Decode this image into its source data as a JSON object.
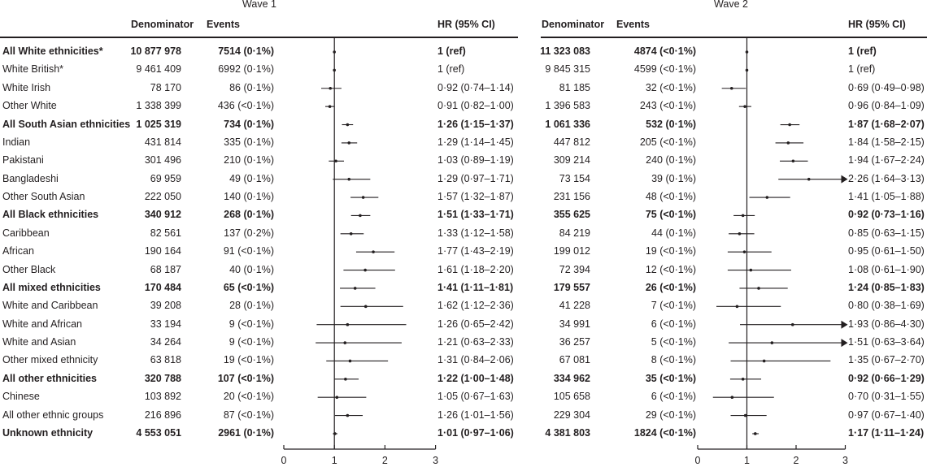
{
  "chart_data": {
    "type": "forest",
    "xlim": [
      0,
      3
    ],
    "x_ticks": [
      "0",
      "1",
      "2",
      "3"
    ],
    "reference_line": 1,
    "waves": [
      {
        "title": "Wave 1",
        "headers": {
          "denominator": "Denominator",
          "events": "Events",
          "hr": "HR (95% CI)"
        }
      },
      {
        "title": "Wave 2",
        "headers": {
          "denominator": "Denominator",
          "events": "Events",
          "hr": "HR (95% CI)"
        }
      }
    ],
    "rows": [
      {
        "label": "All White ethnicities*",
        "bold": true,
        "w1": {
          "den": "10 877 978",
          "ev": "7514 (0·1%)",
          "hr_text": "1 (ref)",
          "hr": 1,
          "lo": 1,
          "hi": 1
        },
        "w2": {
          "den": "11 323 083",
          "ev": "4874 (<0·1%)",
          "hr_text": "1 (ref)",
          "hr": 1,
          "lo": 1,
          "hi": 1
        }
      },
      {
        "label": "White British*",
        "bold": false,
        "w1": {
          "den": "9 461 409",
          "ev": "6992 (0·1%)",
          "hr_text": "1 (ref)",
          "hr": 1,
          "lo": 1,
          "hi": 1
        },
        "w2": {
          "den": "9 845 315",
          "ev": "4599 (<0·1%)",
          "hr_text": "1 (ref)",
          "hr": 1,
          "lo": 1,
          "hi": 1
        }
      },
      {
        "label": "White Irish",
        "bold": false,
        "w1": {
          "den": "78 170",
          "ev": "86 (0·1%)",
          "hr_text": "0·92 (0·74–1·14)",
          "hr": 0.92,
          "lo": 0.74,
          "hi": 1.14
        },
        "w2": {
          "den": "81 185",
          "ev": "32 (<0·1%)",
          "hr_text": "0·69 (0·49–0·98)",
          "hr": 0.69,
          "lo": 0.49,
          "hi": 0.98
        }
      },
      {
        "label": "Other White",
        "bold": false,
        "w1": {
          "den": "1 338 399",
          "ev": "436 (<0·1%)",
          "hr_text": "0·91 (0·82–1·00)",
          "hr": 0.91,
          "lo": 0.82,
          "hi": 1.0
        },
        "w2": {
          "den": "1 396 583",
          "ev": "243 (<0·1%)",
          "hr_text": "0·96 (0·84–1·09)",
          "hr": 0.96,
          "lo": 0.84,
          "hi": 1.09
        }
      },
      {
        "label": "All South Asian ethnicities",
        "bold": true,
        "w1": {
          "den": "1 025 319",
          "ev": "734 (0·1%)",
          "hr_text": "1·26 (1·15–1·37)",
          "hr": 1.26,
          "lo": 1.15,
          "hi": 1.37
        },
        "w2": {
          "den": "1 061 336",
          "ev": "532 (0·1%)",
          "hr_text": "1·87 (1·68–2·07)",
          "hr": 1.87,
          "lo": 1.68,
          "hi": 2.07
        }
      },
      {
        "label": "Indian",
        "bold": false,
        "w1": {
          "den": "431 814",
          "ev": "335 (0·1%)",
          "hr_text": "1·29 (1·14–1·45)",
          "hr": 1.29,
          "lo": 1.14,
          "hi": 1.45
        },
        "w2": {
          "den": "447 812",
          "ev": "205 (<0·1%)",
          "hr_text": "1·84 (1·58–2·15)",
          "hr": 1.84,
          "lo": 1.58,
          "hi": 2.15
        }
      },
      {
        "label": "Pakistani",
        "bold": false,
        "w1": {
          "den": "301 496",
          "ev": "210 (0·1%)",
          "hr_text": "1·03 (0·89–1·19)",
          "hr": 1.03,
          "lo": 0.89,
          "hi": 1.19
        },
        "w2": {
          "den": "309 214",
          "ev": "240 (0·1%)",
          "hr_text": "1·94 (1·67–2·24)",
          "hr": 1.94,
          "lo": 1.67,
          "hi": 2.24
        }
      },
      {
        "label": "Bangladeshi",
        "bold": false,
        "w1": {
          "den": "69 959",
          "ev": "49 (0·1%)",
          "hr_text": "1·29 (0·97–1·71)",
          "hr": 1.29,
          "lo": 0.97,
          "hi": 1.71
        },
        "w2": {
          "den": "73 154",
          "ev": "39 (0·1%)",
          "hr_text": "2·26 (1·64–3·13)",
          "hr": 2.26,
          "lo": 1.64,
          "hi": 3.13
        }
      },
      {
        "label": "Other South Asian",
        "bold": false,
        "w1": {
          "den": "222 050",
          "ev": "140 (0·1%)",
          "hr_text": "1·57 (1·32–1·87)",
          "hr": 1.57,
          "lo": 1.32,
          "hi": 1.87
        },
        "w2": {
          "den": "231 156",
          "ev": "48 (<0·1%)",
          "hr_text": "1·41 (1·05–1·88)",
          "hr": 1.41,
          "lo": 1.05,
          "hi": 1.88
        }
      },
      {
        "label": "All Black ethnicities",
        "bold": true,
        "w1": {
          "den": "340 912",
          "ev": "268 (0·1%)",
          "hr_text": "1·51 (1·33–1·71)",
          "hr": 1.51,
          "lo": 1.33,
          "hi": 1.71
        },
        "w2": {
          "den": "355 625",
          "ev": "75 (<0·1%)",
          "hr_text": "0·92 (0·73–1·16)",
          "hr": 0.92,
          "lo": 0.73,
          "hi": 1.16
        }
      },
      {
        "label": "Caribbean",
        "bold": false,
        "w1": {
          "den": "82 561",
          "ev": "137 (0·2%)",
          "hr_text": "1·33 (1·12–1·58)",
          "hr": 1.33,
          "lo": 1.12,
          "hi": 1.58
        },
        "w2": {
          "den": "84 219",
          "ev": "44 (0·1%)",
          "hr_text": "0·85 (0·63–1·15)",
          "hr": 0.85,
          "lo": 0.63,
          "hi": 1.15
        }
      },
      {
        "label": "African",
        "bold": false,
        "w1": {
          "den": "190 164",
          "ev": "91 (<0·1%)",
          "hr_text": "1·77 (1·43–2·19)",
          "hr": 1.77,
          "lo": 1.43,
          "hi": 2.19
        },
        "w2": {
          "den": "199 012",
          "ev": "19 (<0·1%)",
          "hr_text": "0·95 (0·61–1·50)",
          "hr": 0.95,
          "lo": 0.61,
          "hi": 1.5
        }
      },
      {
        "label": "Other Black",
        "bold": false,
        "w1": {
          "den": "68 187",
          "ev": "40 (0·1%)",
          "hr_text": "1·61 (1·18–2·20)",
          "hr": 1.61,
          "lo": 1.18,
          "hi": 2.2
        },
        "w2": {
          "den": "72 394",
          "ev": "12 (<0·1%)",
          "hr_text": "1·08 (0·61–1·90)",
          "hr": 1.08,
          "lo": 0.61,
          "hi": 1.9
        }
      },
      {
        "label": "All mixed ethnicities",
        "bold": true,
        "w1": {
          "den": "170 484",
          "ev": "65 (<0·1%)",
          "hr_text": "1·41 (1·11–1·81)",
          "hr": 1.41,
          "lo": 1.11,
          "hi": 1.81
        },
        "w2": {
          "den": "179 557",
          "ev": "26 (<0·1%)",
          "hr_text": "1·24 (0·85–1·83)",
          "hr": 1.24,
          "lo": 0.85,
          "hi": 1.83
        }
      },
      {
        "label": "White and Caribbean",
        "bold": false,
        "w1": {
          "den": "39 208",
          "ev": "28 (0·1%)",
          "hr_text": "1·62 (1·12–2·36)",
          "hr": 1.62,
          "lo": 1.12,
          "hi": 2.36
        },
        "w2": {
          "den": "41 228",
          "ev": "7 (<0·1%)",
          "hr_text": "0·80 (0·38–1·69)",
          "hr": 0.8,
          "lo": 0.38,
          "hi": 1.69
        }
      },
      {
        "label": "White and African",
        "bold": false,
        "w1": {
          "den": "33 194",
          "ev": "9 (<0·1%)",
          "hr_text": "1·26 (0·65–2·42)",
          "hr": 1.26,
          "lo": 0.65,
          "hi": 2.42
        },
        "w2": {
          "den": "34 991",
          "ev": "6 (<0·1%)",
          "hr_text": "1·93 (0·86–4·30)",
          "hr": 1.93,
          "lo": 0.86,
          "hi": 4.3
        }
      },
      {
        "label": "White and Asian",
        "bold": false,
        "w1": {
          "den": "34 264",
          "ev": "9 (<0·1%)",
          "hr_text": "1·21 (0·63–2·33)",
          "hr": 1.21,
          "lo": 0.63,
          "hi": 2.33
        },
        "w2": {
          "den": "36 257",
          "ev": "5 (<0·1%)",
          "hr_text": "1·51 (0·63–3·64)",
          "hr": 1.51,
          "lo": 0.63,
          "hi": 3.64
        }
      },
      {
        "label": "Other mixed ethnicity",
        "bold": false,
        "w1": {
          "den": "63 818",
          "ev": "19 (<0·1%)",
          "hr_text": "1·31 (0·84–2·06)",
          "hr": 1.31,
          "lo": 0.84,
          "hi": 2.06
        },
        "w2": {
          "den": "67 081",
          "ev": "8 (<0·1%)",
          "hr_text": "1·35 (0·67–2·70)",
          "hr": 1.35,
          "lo": 0.67,
          "hi": 2.7
        }
      },
      {
        "label": "All other ethnicities",
        "bold": true,
        "w1": {
          "den": "320 788",
          "ev": "107 (<0·1%)",
          "hr_text": "1·22 (1·00–1·48)",
          "hr": 1.22,
          "lo": 1.0,
          "hi": 1.48
        },
        "w2": {
          "den": "334 962",
          "ev": "35 (<0·1%)",
          "hr_text": "0·92 (0·66–1·29)",
          "hr": 0.92,
          "lo": 0.66,
          "hi": 1.29
        }
      },
      {
        "label": "Chinese",
        "bold": false,
        "w1": {
          "den": "103 892",
          "ev": "20 (<0·1%)",
          "hr_text": "1·05 (0·67–1·63)",
          "hr": 1.05,
          "lo": 0.67,
          "hi": 1.63
        },
        "w2": {
          "den": "105 658",
          "ev": "6 (<0·1%)",
          "hr_text": "0·70 (0·31–1·55)",
          "hr": 0.7,
          "lo": 0.31,
          "hi": 1.55
        }
      },
      {
        "label": "All other ethnic groups",
        "bold": false,
        "w1": {
          "den": "216 896",
          "ev": "87 (<0·1%)",
          "hr_text": "1·26 (1·01–1·56)",
          "hr": 1.26,
          "lo": 1.01,
          "hi": 1.56
        },
        "w2": {
          "den": "229 304",
          "ev": "29 (<0·1%)",
          "hr_text": "0·97 (0·67–1·40)",
          "hr": 0.97,
          "lo": 0.67,
          "hi": 1.4
        }
      },
      {
        "label": "Unknown ethnicity",
        "bold": true,
        "w1": {
          "den": "4 553 051",
          "ev": "2961 (0·1%)",
          "hr_text": "1·01 (0·97–1·06)",
          "hr": 1.01,
          "lo": 0.97,
          "hi": 1.06
        },
        "w2": {
          "den": "4 381 803",
          "ev": "1824 (<0·1%)",
          "hr_text": "1·17 (1·11–1·24)",
          "hr": 1.17,
          "lo": 1.11,
          "hi": 1.24
        }
      }
    ]
  }
}
